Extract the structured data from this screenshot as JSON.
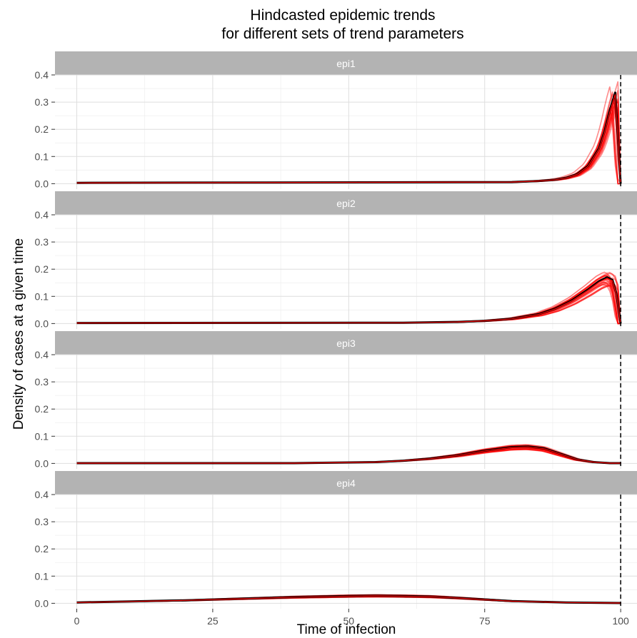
{
  "chart_data": {
    "type": "line",
    "title_line1": "Hindcasted epidemic trends",
    "title_line2": "for different sets of trend parameters",
    "xlabel": "Time of infection",
    "ylabel": "Density of cases at a given time",
    "xlim": [
      -4,
      103
    ],
    "ylim": [
      -0.02,
      0.4
    ],
    "x_ticks": [
      0,
      25,
      50,
      75,
      100
    ],
    "x_tick_labels": [
      "0",
      "25",
      "50",
      "75",
      "100"
    ],
    "y_ticks": [
      0.0,
      0.1,
      0.2,
      0.3,
      0.4
    ],
    "y_tick_labels": [
      "0.0",
      "0.1",
      "0.2",
      "0.3",
      "0.4"
    ],
    "vline_x": 100,
    "grid": true,
    "colors": {
      "strip_bg": "#b3b3b3",
      "grid_major": "#dedede",
      "grid_minor": "#efefef",
      "true_trend": "#000000",
      "estimated_trends": "#ff0000"
    },
    "panels": [
      {
        "label": "epi1",
        "trend": {
          "x": [
            0,
            80,
            85,
            88,
            90,
            92,
            94,
            96,
            97,
            98,
            99,
            100
          ],
          "y": [
            0.003,
            0.006,
            0.01,
            0.015,
            0.022,
            0.035,
            0.065,
            0.13,
            0.19,
            0.27,
            0.335,
            0.0
          ]
        }
      },
      {
        "label": "epi2",
        "trend": {
          "x": [
            0,
            60,
            70,
            75,
            80,
            85,
            88,
            91,
            94,
            96,
            97.5,
            98.5,
            99.2,
            100
          ],
          "y": [
            0.002,
            0.003,
            0.006,
            0.01,
            0.018,
            0.035,
            0.055,
            0.085,
            0.125,
            0.155,
            0.17,
            0.16,
            0.11,
            0.0
          ]
        }
      },
      {
        "label": "epi3",
        "trend": {
          "x": [
            0,
            40,
            55,
            60,
            65,
            70,
            75,
            80,
            83,
            86,
            89,
            92,
            95,
            98,
            100
          ],
          "y": [
            0.001,
            0.001,
            0.005,
            0.01,
            0.018,
            0.03,
            0.047,
            0.06,
            0.062,
            0.055,
            0.035,
            0.015,
            0.005,
            0.001,
            0.001
          ]
        }
      },
      {
        "label": "epi4",
        "trend": {
          "x": [
            0,
            10,
            20,
            30,
            40,
            50,
            55,
            60,
            65,
            70,
            75,
            80,
            90,
            100
          ],
          "y": [
            0.003,
            0.007,
            0.011,
            0.017,
            0.023,
            0.027,
            0.028,
            0.027,
            0.025,
            0.02,
            0.014,
            0.008,
            0.003,
            0.001
          ]
        }
      }
    ]
  }
}
